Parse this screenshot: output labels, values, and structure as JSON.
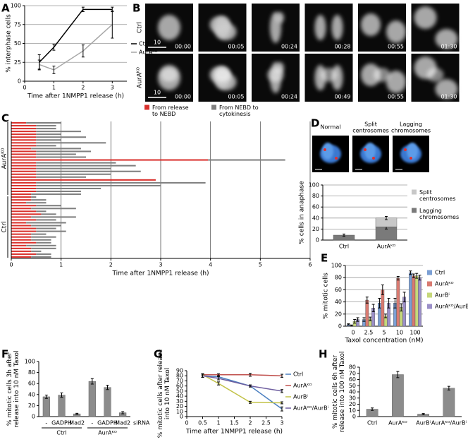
{
  "panel_labels": [
    "A",
    "B",
    "C",
    "D",
    "E",
    "F",
    "G",
    "H"
  ],
  "panel_b": {
    "row_labels": [
      "Ctrl",
      "AurAᴷᴼ"
    ],
    "timestamps": [
      [
        "00:00",
        "00:05",
        "00:24",
        "00:28",
        "00:55",
        "01:30"
      ],
      [
        "00:00",
        "00:05",
        "00:24",
        "00:49",
        "00:55",
        "01:30"
      ]
    ],
    "scale_labels": [
      "10",
      "10"
    ]
  },
  "panel_d_images": {
    "labels": [
      "Normal",
      "Split centrosomes",
      "Lagging chromosomes"
    ]
  },
  "chart_data": [
    {
      "type": "line",
      "xlabel": "Time after 1NMPP1 release (h)",
      "ylabel": "% interphase cells",
      "x": [
        0.5,
        1,
        2,
        3
      ],
      "xlim": [
        0,
        3.5
      ],
      "xticks": [
        0,
        1,
        2,
        3
      ],
      "ylim": [
        0,
        100
      ],
      "yticks": [
        0,
        25,
        50,
        75,
        100
      ],
      "grid": true,
      "legend": "right",
      "series": [
        {
          "name": "Ctrl",
          "color": "#000000",
          "values": [
            25,
            45,
            95,
            95
          ],
          "errors": [
            10,
            4,
            3,
            3
          ]
        },
        {
          "name": "AurAᴷᴼ",
          "color": "#a6a6a6",
          "values": [
            22,
            15,
            40,
            75
          ],
          "errors": [
            6,
            5,
            8,
            18
          ]
        }
      ]
    },
    {
      "type": "hbar-groups",
      "xlabel": "Time after 1NMPP1 release (h)",
      "xlim": [
        0,
        6
      ],
      "xticks": [
        0,
        1,
        2,
        3,
        4,
        5,
        6
      ],
      "grid": true,
      "legend": "top",
      "series": [
        {
          "name": "From release to NEBD",
          "color": "#d9302c"
        },
        {
          "name": "From NEBD to cytokinesis",
          "color": "#7f7f7f"
        }
      ],
      "groups": [
        {
          "label": "AurAᴷᴼ",
          "series": [
            {
              "values": [
                0.3,
                0.5,
                0.5,
                0.5,
                0.5,
                0.5,
                0.5,
                0.5,
                0.5,
                0.4,
                0.5,
                0.5,
                0.5,
                3.95,
                0.5,
                0.5,
                0.5,
                0.5,
                0.5,
                0.5,
                2.9,
                0.5,
                0.5,
                0.5,
                0.5,
                0.4
              ]
            },
            {
              "values": [
                0.7,
                0.4,
                0.4,
                0.9,
                0.5,
                1.0,
                0.5,
                1.4,
                0.4,
                1.0,
                1.1,
                0.8,
                1.0,
                1.55,
                1.6,
                2.0,
                1.5,
                2.1,
                1.5,
                1.0,
                0,
                3.4,
                2.5,
                1.3,
                0.9,
                1.0
              ]
            }
          ]
        },
        {
          "label": "Ctrl",
          "series": [
            {
              "values": [
                0.4,
                0.4,
                0.3,
                0.5,
                0.4,
                0.5,
                0.6,
                0.4,
                0.5,
                0.3,
                0.4,
                0.5,
                0.5,
                0.4,
                0.4,
                0.4,
                0.5,
                0.3,
                0.4,
                0.4,
                0.5,
                0.4
              ]
            },
            {
              "values": [
                0.1,
                0.3,
                0.4,
                0.5,
                0.9,
                0.2,
                0.3,
                0.9,
                0.4,
                0.8,
                0.6,
                0.4,
                0.6,
                0.3,
                0.5,
                0.4,
                0.3,
                0.6,
                0.5,
                0.2,
                0.3,
                0.4
              ]
            }
          ]
        }
      ]
    },
    {
      "type": "bar",
      "stacked": true,
      "ylabel": "% cells in anaphase",
      "categories": [
        "Ctrl",
        "AurAᴷᴼ"
      ],
      "ylim": [
        0,
        100
      ],
      "yticks": [
        0,
        20,
        40,
        60,
        80,
        100
      ],
      "grid": true,
      "legend": "right",
      "series": [
        {
          "name": "Lagging chromosomes",
          "color": "#7a7a7a",
          "values": [
            9,
            24
          ],
          "errors": [
            2,
            4
          ]
        },
        {
          "name": "Split centrosomes",
          "color": "#c8c8c8",
          "values": [
            0,
            16
          ],
          "errors": [
            0,
            3
          ]
        }
      ]
    },
    {
      "type": "bar",
      "xlabel": "Taxol concentration (nM)",
      "ylabel": "% mitotic cells",
      "categories": [
        "0",
        "2.5",
        "5",
        "10",
        "100"
      ],
      "ylim": [
        0,
        100
      ],
      "yticks": [
        0,
        20,
        40,
        60,
        80,
        100
      ],
      "grid": true,
      "legend": "right",
      "series": [
        {
          "name": "Ctrl",
          "color": "#7b9fd4",
          "values": [
            3,
            11,
            38,
            38,
            88
          ],
          "errors": [
            1,
            3,
            8,
            8,
            3
          ]
        },
        {
          "name": "AurAᴷᴼ",
          "color": "#d97a70",
          "values": [
            1,
            43,
            60,
            79,
            83
          ],
          "errors": [
            1,
            5,
            8,
            3,
            3
          ]
        },
        {
          "name": "AurBⁱ",
          "color": "#c6d77a",
          "values": [
            8,
            12,
            17,
            31,
            83
          ],
          "errors": [
            3,
            3,
            3,
            6,
            4
          ]
        },
        {
          "name": "AurAᴷᴼ/AurBⁱ",
          "color": "#9b8fc8",
          "values": [
            11,
            30,
            38,
            48,
            80
          ],
          "errors": [
            3,
            6,
            8,
            8,
            4
          ]
        }
      ]
    },
    {
      "type": "bar",
      "ylabel": "% mitotic cells 3h after release into 10 nM Taxol",
      "categories": [
        "-",
        "GADPH",
        "Mad2",
        "-",
        "GADPH",
        "Mad2"
      ],
      "group_labels": [
        "Ctrl",
        "AurAᴷᴼ"
      ],
      "category_title": "siRNA",
      "ylim": [
        0,
        100
      ],
      "yticks": [
        0,
        20,
        40,
        60,
        80,
        100
      ],
      "grid": false,
      "color": "#8c8c8c",
      "values": [
        36,
        39,
        5,
        64,
        53,
        7
      ],
      "errors": [
        3,
        4,
        1,
        5,
        4,
        2
      ]
    },
    {
      "type": "line",
      "xlabel": "Time after 1NMPP1 release (h)",
      "ylabel": "% mitotic cells after release into 10 nM Taxol",
      "x": [
        0.5,
        1,
        2,
        3
      ],
      "xlim": [
        0,
        3
      ],
      "xticks": [
        0,
        0.5,
        1,
        1.5,
        2,
        2.5,
        3
      ],
      "ylim": [
        0,
        90
      ],
      "yticks": [
        0,
        10,
        20,
        30,
        40,
        50,
        60,
        70,
        80,
        90
      ],
      "grid": false,
      "legend": "right",
      "series": [
        {
          "name": "Ctrl",
          "color": "#4a7fc0",
          "values": [
            80,
            78,
            60,
            15
          ],
          "errors": [
            3,
            3,
            2,
            4
          ]
        },
        {
          "name": "AurAᴷᴼ",
          "color": "#c0504d",
          "values": [
            82,
            82,
            82,
            80
          ],
          "errors": [
            2,
            2,
            3,
            3
          ]
        },
        {
          "name": "AurBⁱ",
          "color": "#c3c34a",
          "values": [
            82,
            65,
            28,
            27
          ],
          "errors": [
            2,
            3,
            2,
            2
          ]
        },
        {
          "name": "AurAᴷᴼ/AurBⁱ",
          "color": "#6f5fa0",
          "values": [
            80,
            75,
            60,
            50
          ],
          "errors": [
            3,
            3,
            2,
            3
          ]
        }
      ]
    },
    {
      "type": "bar",
      "ylabel": "% mitotic cells 6h after release into 100 nM Taxol",
      "categories": [
        "Ctrl",
        "AurAᴷᴼ",
        "AurBⁱ",
        "AurAᴷᴼ/AurBⁱ"
      ],
      "ylim": [
        0,
        80
      ],
      "yticks": [
        0,
        10,
        20,
        30,
        40,
        50,
        60,
        70,
        80
      ],
      "grid": false,
      "color": "#8c8c8c",
      "values": [
        12,
        68,
        4,
        46
      ],
      "errors": [
        2,
        5,
        1,
        3
      ]
    }
  ]
}
